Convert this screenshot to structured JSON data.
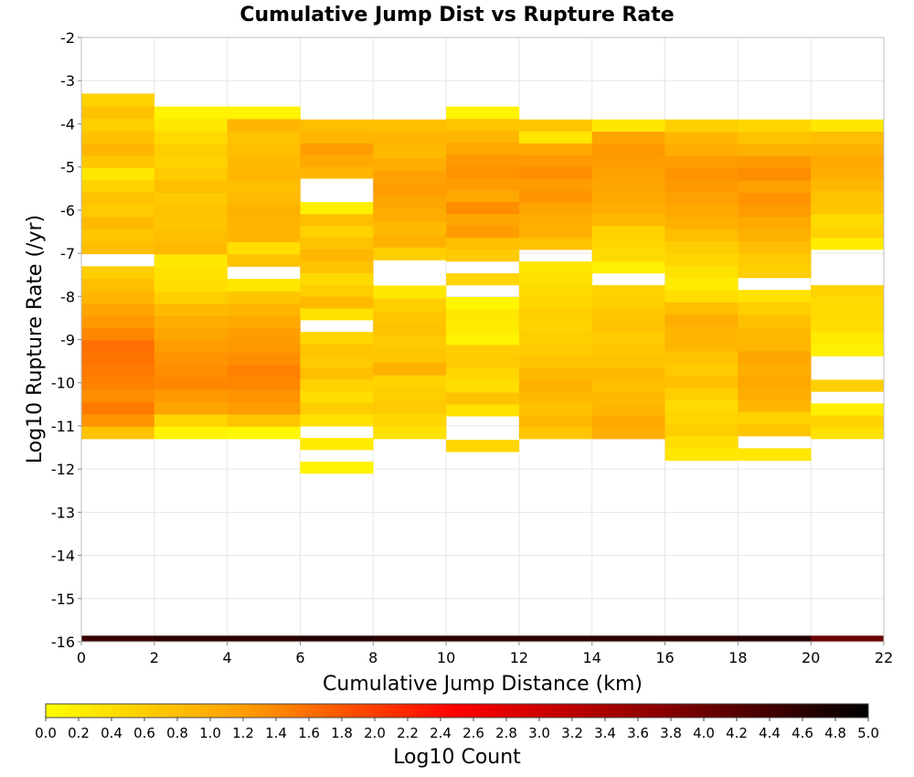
{
  "chart_data": {
    "type": "heatmap",
    "title": "Cumulative Jump Dist vs Rupture Rate",
    "xlabel": "Cumulative Jump Distance (km)",
    "ylabel": "Log10 Rupture Rate (/yr)",
    "xlim": [
      0,
      22
    ],
    "ylim": [
      -16,
      -2
    ],
    "x_ticks": [
      "0",
      "2",
      "4",
      "6",
      "8",
      "10",
      "12",
      "14",
      "16",
      "18",
      "20",
      "22"
    ],
    "y_ticks": [
      "-2",
      "-3",
      "-4",
      "-5",
      "-6",
      "-7",
      "-8",
      "-9",
      "-10",
      "-11",
      "-12",
      "-13",
      "-14",
      "-15",
      "-16"
    ],
    "grid": true,
    "x_bin_width": 2,
    "y_bin_height": 0.2857,
    "colorbar": {
      "label": "Log10 Count",
      "range": [
        0.0,
        5.0
      ],
      "ticks": [
        "0.0",
        "0.2",
        "0.4",
        "0.6",
        "0.8",
        "1.0",
        "1.2",
        "1.4",
        "1.6",
        "1.8",
        "2.0",
        "2.2",
        "2.4",
        "2.6",
        "2.8",
        "3.0",
        "3.2",
        "3.4",
        "3.6",
        "3.8",
        "4.0",
        "4.2",
        "4.4",
        "4.6",
        "4.8",
        "5.0"
      ],
      "colors": [
        "#ffff00",
        "#ff9900",
        "#ff0000",
        "#880000",
        "#000000"
      ]
    },
    "bins": [
      {
        "x0": 0,
        "y0": -11.3,
        "y1": -3.3,
        "values": [
          0.75,
          1.3,
          1.5,
          1.35,
          1.45,
          1.5,
          1.55,
          1.6,
          1.4,
          1.25,
          1.1,
          0.9,
          0.8,
          0.6,
          null,
          0.8,
          0.7,
          0.85,
          0.65,
          0.75,
          0.55,
          0.3,
          0.7,
          0.9,
          0.75,
          0.6,
          0.75,
          0.55
        ]
      },
      {
        "x0": 2,
        "y0": -11.3,
        "y1": -3.6,
        "values": [
          0.15,
          0.5,
          1.1,
          1.25,
          1.4,
          1.35,
          1.3,
          1.2,
          1.1,
          1.0,
          0.85,
          0.6,
          0.4,
          0.35,
          0.3,
          0.85,
          0.8,
          0.7,
          0.75,
          0.65,
          0.8,
          0.65,
          0.55,
          0.6,
          0.45,
          0.3,
          0.15
        ]
      },
      {
        "x0": 4,
        "y0": -11.3,
        "y1": -3.6,
        "values": [
          0.1,
          0.7,
          1.2,
          1.3,
          1.4,
          1.45,
          1.35,
          1.25,
          1.2,
          1.05,
          0.9,
          0.7,
          0.3,
          null,
          0.75,
          0.4,
          0.9,
          0.9,
          0.95,
          0.85,
          0.8,
          0.9,
          0.85,
          0.8,
          0.75,
          0.9,
          0.15
        ]
      },
      {
        "x0": 6,
        "y0": -12.1,
        "y1": -3.9,
        "values": [
          0.15,
          null,
          0.25,
          null,
          0.35,
          0.6,
          0.4,
          0.55,
          0.8,
          0.65,
          0.7,
          0.5,
          null,
          0.35,
          0.85,
          0.6,
          0.45,
          0.75,
          0.9,
          0.75,
          0.55,
          0.8,
          0.2,
          null,
          null,
          0.9,
          1.05,
          1.2,
          0.9,
          0.8
        ]
      },
      {
        "x0": 8,
        "y0": -11.3,
        "y1": -3.9,
        "values": [
          0.35,
          0.5,
          0.65,
          0.6,
          0.55,
          0.95,
          0.7,
          0.65,
          0.75,
          0.7,
          0.6,
          0.3,
          null,
          null,
          0.6,
          0.95,
          0.85,
          1.0,
          1.1,
          1.2,
          1.15,
          1.0,
          0.85,
          0.9,
          0.8
        ]
      },
      {
        "x0": 10,
        "y0": -11.6,
        "y1": -3.6,
        "values": [
          0.5,
          null,
          null,
          0.35,
          0.75,
          0.4,
          0.5,
          0.65,
          0.6,
          0.15,
          0.25,
          0.3,
          0.1,
          null,
          0.5,
          null,
          0.65,
          0.8,
          1.2,
          1.1,
          1.35,
          1.05,
          1.2,
          1.3,
          1.25,
          1.05,
          0.9,
          0.7,
          0.15
        ]
      },
      {
        "x0": 12,
        "y0": -11.3,
        "y1": -3.9,
        "values": [
          0.7,
          0.85,
          0.75,
          0.85,
          0.95,
          0.85,
          0.75,
          0.65,
          0.6,
          0.55,
          0.6,
          0.5,
          0.45,
          0.35,
          0.3,
          null,
          0.75,
          0.95,
          1.0,
          1.1,
          1.3,
          1.2,
          1.35,
          1.25,
          1.05,
          0.3,
          0.7
        ]
      },
      {
        "x0": 14,
        "y0": -11.3,
        "y1": -3.9,
        "values": [
          1.0,
          1.05,
          0.9,
          0.85,
          0.8,
          0.85,
          0.75,
          0.7,
          0.65,
          0.75,
          0.7,
          0.6,
          0.55,
          null,
          0.2,
          0.45,
          0.5,
          0.55,
          0.85,
          1.0,
          1.05,
          1.1,
          1.15,
          1.2,
          1.25,
          1.1,
          0.3
        ]
      },
      {
        "x0": 16,
        "y0": -11.8,
        "y1": -3.9,
        "values": [
          0.3,
          0.4,
          0.6,
          0.5,
          0.45,
          0.6,
          0.8,
          0.65,
          0.75,
          0.9,
          0.9,
          1.0,
          0.8,
          0.4,
          0.25,
          0.35,
          0.5,
          0.6,
          0.8,
          0.95,
          1.05,
          1.15,
          1.25,
          1.3,
          1.2,
          1.0,
          0.9,
          0.6
        ]
      },
      {
        "x0": 18,
        "y0": -11.8,
        "y1": -3.9,
        "values": [
          0.3,
          null,
          0.7,
          0.55,
          0.9,
          1.0,
          1.05,
          1.0,
          1.1,
          0.9,
          0.85,
          0.75,
          0.6,
          0.35,
          null,
          0.6,
          0.65,
          0.8,
          0.95,
          1.05,
          1.2,
          1.3,
          1.15,
          1.35,
          1.25,
          0.95,
          0.75,
          0.5
        ]
      },
      {
        "x0": 20,
        "y0": -11.3,
        "y1": -3.9,
        "values": [
          0.35,
          0.55,
          0.2,
          null,
          0.6,
          null,
          null,
          0.2,
          0.25,
          0.4,
          0.45,
          0.45,
          0.55,
          null,
          null,
          null,
          0.25,
          0.55,
          0.45,
          0.7,
          0.75,
          0.9,
          1.0,
          1.05,
          0.95,
          0.8,
          0.3
        ]
      }
    ],
    "bottom_row": {
      "y0": -16.0,
      "y1": -15.86,
      "values": [
        4.5,
        4.6,
        4.6,
        4.65,
        4.6,
        4.6,
        4.6,
        4.6,
        4.6,
        4.65,
        4.0
      ]
    }
  }
}
